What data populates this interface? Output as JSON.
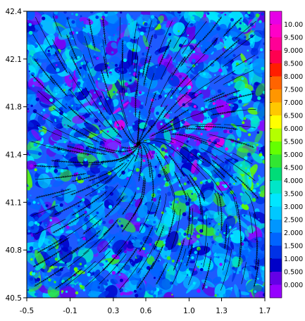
{
  "map": {
    "x_ticks": [
      "-0.5",
      "-0.1",
      "0.3",
      "0.6",
      "1.0",
      "1.3",
      "1.7"
    ],
    "y_ticks": [
      "42.4",
      "42.1",
      "41.8",
      "41.4",
      "41.1",
      "40.8",
      "40.5"
    ],
    "x_range": [
      -0.5,
      1.7
    ],
    "y_range": [
      40.5,
      42.4
    ],
    "field": "shaded scalar field with overlaid streamlines"
  },
  "colorbar": {
    "labels": [
      "10.00",
      "9.500",
      "9.000",
      "8.500",
      "8.000",
      "7.500",
      "7.000",
      "6.500",
      "6.000",
      "5.500",
      "5.000",
      "4.500",
      "4.000",
      "3.500",
      "3.000",
      "2.500",
      "2.000",
      "1.500",
      "1.000",
      "0.500",
      "0.000"
    ],
    "colors": [
      "#e600e6",
      "#ff00c8",
      "#ff0096",
      "#ff0050",
      "#ff1e00",
      "#ff6400",
      "#ff9600",
      "#ffc800",
      "#ffff00",
      "#b4ff00",
      "#64ff00",
      "#32e632",
      "#00dc78",
      "#00e6c8",
      "#00e6ff",
      "#00c8ff",
      "#0096ff",
      "#0064ff",
      "#0032e6",
      "#0000c8",
      "#6400e6",
      "#9600ff"
    ]
  }
}
